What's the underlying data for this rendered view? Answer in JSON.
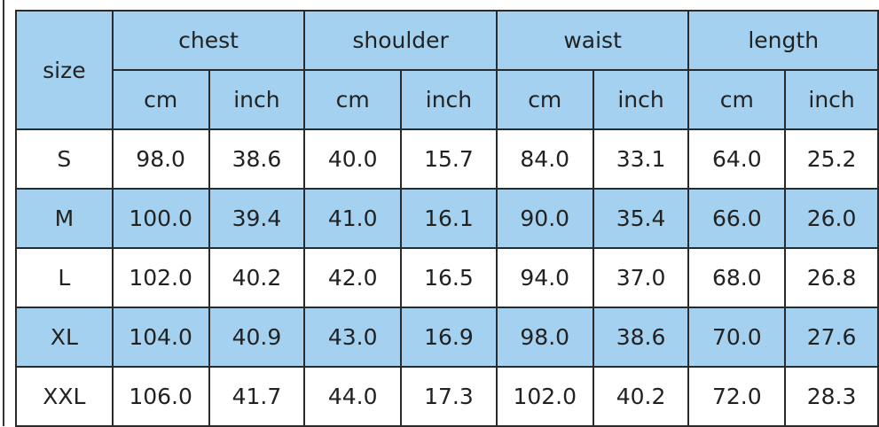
{
  "header": {
    "size": "size",
    "groups": [
      "chest",
      "shoulder",
      "waist",
      "length"
    ],
    "units": [
      "cm",
      "inch",
      "cm",
      "inch",
      "cm",
      "inch",
      "cm",
      "inch"
    ]
  },
  "rows": [
    [
      "S",
      "98.0",
      "38.6",
      "40.0",
      "15.7",
      "84.0",
      "33.1",
      "64.0",
      "25.2"
    ],
    [
      "M",
      "100.0",
      "39.4",
      "41.0",
      "16.1",
      "90.0",
      "35.4",
      "66.0",
      "26.0"
    ],
    [
      "L",
      "102.0",
      "40.2",
      "42.0",
      "16.5",
      "94.0",
      "37.0",
      "68.0",
      "26.8"
    ],
    [
      "XL",
      "104.0",
      "40.9",
      "43.0",
      "16.9",
      "98.0",
      "38.6",
      "70.0",
      "27.6"
    ],
    [
      "XXL",
      "106.0",
      "41.7",
      "44.0",
      "17.3",
      "102.0",
      "40.2",
      "72.0",
      "28.3"
    ]
  ],
  "colors": {
    "header_blue": "#a3d1ef",
    "alt_row_blue": "#a3d1ef",
    "border": "#2a2a2a"
  }
}
